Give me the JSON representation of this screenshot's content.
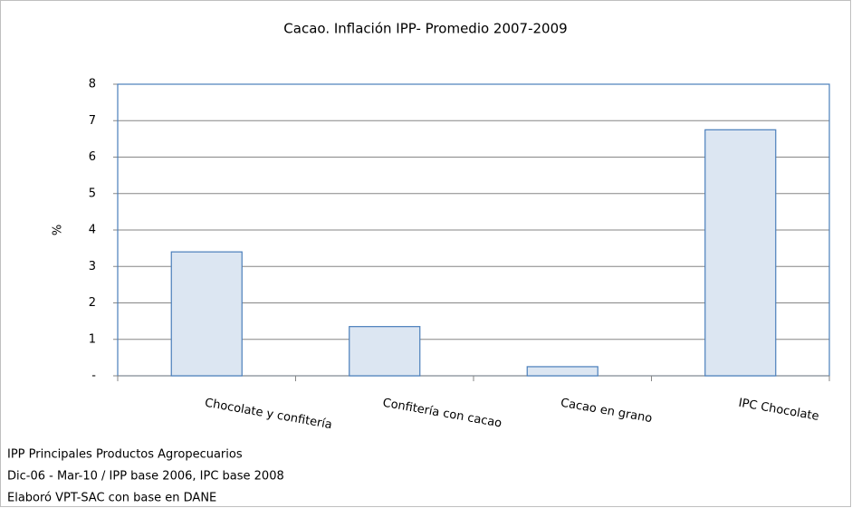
{
  "chart_data": {
    "type": "bar",
    "title": "Cacao. Inflación IPP- Promedio 2007-2009",
    "categories": [
      "Chocolate y confitería",
      "Confitería con cacao",
      "Cacao en grano",
      "IPC Chocolate"
    ],
    "values": [
      3.4,
      1.35,
      0.25,
      6.75
    ],
    "color": "#dce6f2",
    "edge_color": "#4a7ebb",
    "ylabel": "%",
    "ylim": [
      0,
      8
    ],
    "yticks": [
      {
        "value": 0,
        "label": "-"
      },
      1,
      2,
      3,
      4,
      5,
      6,
      7,
      8
    ],
    "grid": true,
    "notes": [
      "IPP Principales Productos Agropecuarios",
      "Dic-06 - Mar-10 / IPP base 2006, IPC base 2008",
      "Elaboró VPT-SAC con base en DANE"
    ]
  }
}
